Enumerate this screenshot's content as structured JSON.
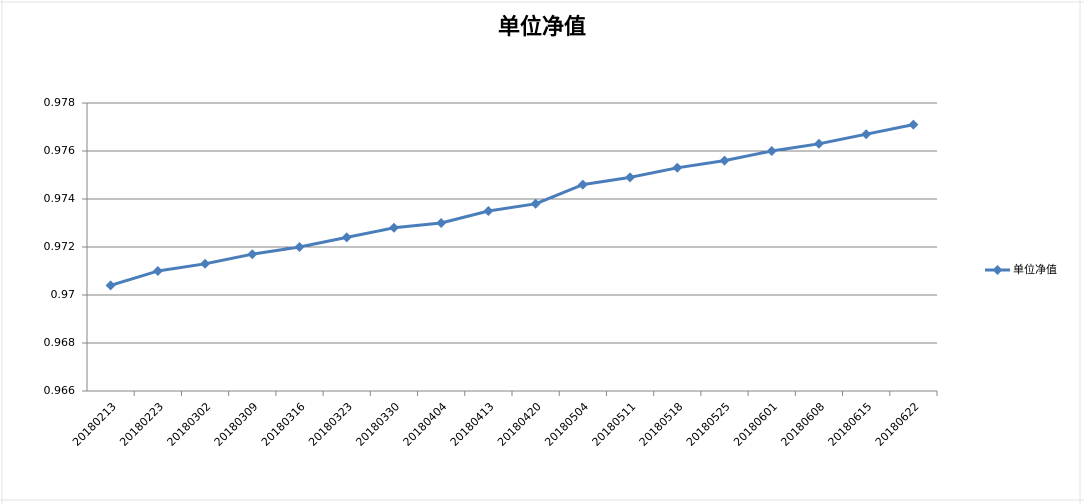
{
  "chart_data": {
    "type": "line",
    "title": "单位净值",
    "categories": [
      "20180213",
      "20180223",
      "20180302",
      "20180309",
      "20180316",
      "20180323",
      "20180330",
      "20180404",
      "20180413",
      "20180420",
      "20180504",
      "20180511",
      "20180518",
      "20180525",
      "20180601",
      "20180608",
      "20180615",
      "20180622"
    ],
    "series": [
      {
        "name": "单位净值",
        "color": "#4a7ebb",
        "values": [
          0.9704,
          0.971,
          0.9713,
          0.9717,
          0.972,
          0.9724,
          0.9728,
          0.973,
          0.9735,
          0.9738,
          0.9746,
          0.9749,
          0.9753,
          0.9756,
          0.976,
          0.9763,
          0.9767,
          0.9771
        ]
      }
    ],
    "ylim": [
      0.966,
      0.978
    ],
    "yticks": [
      0.966,
      0.968,
      0.97,
      0.972,
      0.974,
      0.976,
      0.978
    ],
    "grid": true,
    "legend": "right"
  }
}
